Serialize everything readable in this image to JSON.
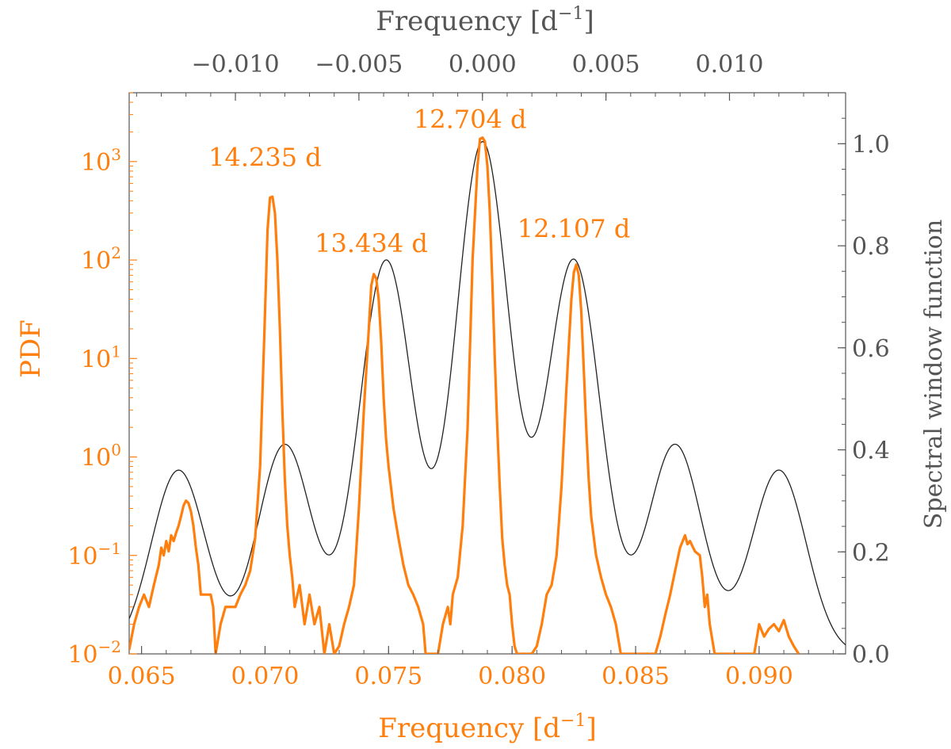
{
  "colors": {
    "pdf": "#ff7f0e",
    "window": "#555555",
    "window_line": "#222222"
  },
  "chart_data": {
    "type": "line",
    "bottom_axis": {
      "label_text": "Frequency [d",
      "label_sup": "−1",
      "label_close": "]",
      "range": [
        0.0645,
        0.0935
      ],
      "ticks": [
        0.065,
        0.07,
        0.075,
        0.08,
        0.085,
        0.09
      ],
      "tick_labels": [
        "0.065",
        "0.070",
        "0.075",
        "0.080",
        "0.085",
        "0.090"
      ],
      "minor_step": 0.001
    },
    "top_axis": {
      "label_text": "Frequency [d",
      "label_sup": "−1",
      "label_close": "]",
      "range": [
        -0.0143,
        0.0147
      ],
      "ticks": [
        -0.01,
        -0.005,
        0.0,
        0.005,
        0.01
      ],
      "tick_labels": [
        "−0.010",
        "−0.005",
        "0.000",
        "0.005",
        "0.010"
      ],
      "minor_step": 0.001
    },
    "left_axis": {
      "label": "PDF",
      "scale": "log",
      "range": [
        0.01,
        5000
      ],
      "tick_exponents": [
        -2,
        -1,
        0,
        1,
        2,
        3
      ],
      "tick_base": "10"
    },
    "right_axis": {
      "label": "Spectral window function",
      "range": [
        0.0,
        1.1
      ],
      "ticks": [
        0.0,
        0.2,
        0.4,
        0.6,
        0.8,
        1.0
      ],
      "tick_labels": [
        "0.0",
        "0.2",
        "0.4",
        "0.6",
        "0.8",
        "1.0"
      ],
      "minor_step": 0.05
    },
    "annotations": [
      {
        "text": "14.235 d",
        "x": 0.07,
        "y": 900
      },
      {
        "text": "13.434 d",
        "x": 0.0743,
        "y": 120
      },
      {
        "text": "12.704 d",
        "x": 0.0783,
        "y": 2200
      },
      {
        "text": "12.107 d",
        "x": 0.0825,
        "y": 170
      }
    ],
    "series": [
      {
        "axis": "left",
        "points": [
          [
            0.0645,
            0.011
          ],
          [
            0.0647,
            0.02
          ],
          [
            0.0649,
            0.03
          ],
          [
            0.0651,
            0.04
          ],
          [
            0.0653,
            0.03
          ],
          [
            0.0655,
            0.05
          ],
          [
            0.0657,
            0.08
          ],
          [
            0.0658,
            0.12
          ],
          [
            0.0659,
            0.1
          ],
          [
            0.066,
            0.14
          ],
          [
            0.0661,
            0.11
          ],
          [
            0.0662,
            0.16
          ],
          [
            0.0663,
            0.14
          ],
          [
            0.0664,
            0.17
          ],
          [
            0.0665,
            0.2
          ],
          [
            0.0666,
            0.25
          ],
          [
            0.0667,
            0.32
          ],
          [
            0.0668,
            0.36
          ],
          [
            0.0669,
            0.34
          ],
          [
            0.067,
            0.28
          ],
          [
            0.0671,
            0.2
          ],
          [
            0.0672,
            0.12
          ],
          [
            0.0673,
            0.08
          ],
          [
            0.0674,
            0.04
          ],
          [
            0.0676,
            0.04
          ],
          [
            0.0678,
            0.04
          ],
          [
            0.0679,
            0.03
          ],
          [
            0.068,
            0.01
          ],
          [
            0.0682,
            0.02
          ],
          [
            0.0684,
            0.03
          ],
          [
            0.0686,
            0.03
          ],
          [
            0.0688,
            0.03
          ],
          [
            0.069,
            0.04
          ],
          [
            0.0692,
            0.05
          ],
          [
            0.0694,
            0.07
          ],
          [
            0.0696,
            0.15
          ],
          [
            0.0698,
            0.8
          ],
          [
            0.07,
            30
          ],
          [
            0.0701,
            200
          ],
          [
            0.0702,
            430
          ],
          [
            0.0703,
            440
          ],
          [
            0.0704,
            300
          ],
          [
            0.0705,
            100
          ],
          [
            0.0706,
            20
          ],
          [
            0.0707,
            3
          ],
          [
            0.0708,
            0.6
          ],
          [
            0.0709,
            0.2
          ],
          [
            0.071,
            0.1
          ],
          [
            0.0711,
            0.06
          ],
          [
            0.0712,
            0.03
          ],
          [
            0.0714,
            0.05
          ],
          [
            0.0716,
            0.02
          ],
          [
            0.0718,
            0.04
          ],
          [
            0.072,
            0.02
          ],
          [
            0.0722,
            0.03
          ],
          [
            0.0724,
            0.01
          ],
          [
            0.0726,
            0.02
          ],
          [
            0.0728,
            0.01
          ],
          [
            0.073,
            0.012
          ],
          [
            0.0732,
            0.02
          ],
          [
            0.0734,
            0.03
          ],
          [
            0.0736,
            0.05
          ],
          [
            0.0738,
            0.3
          ],
          [
            0.074,
            3
          ],
          [
            0.0742,
            20
          ],
          [
            0.0743,
            55
          ],
          [
            0.0744,
            72
          ],
          [
            0.0745,
            65
          ],
          [
            0.0746,
            40
          ],
          [
            0.0747,
            15
          ],
          [
            0.0748,
            4
          ],
          [
            0.0749,
            1.5
          ],
          [
            0.075,
            0.8
          ],
          [
            0.0752,
            0.3
          ],
          [
            0.0754,
            0.15
          ],
          [
            0.0756,
            0.08
          ],
          [
            0.0758,
            0.05
          ],
          [
            0.076,
            0.04
          ],
          [
            0.0762,
            0.03
          ],
          [
            0.0764,
            0.02
          ],
          [
            0.0765,
            0.01
          ],
          [
            0.077,
            0.01
          ],
          [
            0.0772,
            0.02
          ],
          [
            0.0774,
            0.03
          ],
          [
            0.0775,
            0.02
          ],
          [
            0.0776,
            0.04
          ],
          [
            0.0778,
            0.06
          ],
          [
            0.078,
            0.2
          ],
          [
            0.0782,
            2
          ],
          [
            0.0784,
            100
          ],
          [
            0.0786,
            900
          ],
          [
            0.0787,
            1700
          ],
          [
            0.0788,
            1750
          ],
          [
            0.0789,
            1600
          ],
          [
            0.079,
            900
          ],
          [
            0.0791,
            300
          ],
          [
            0.0792,
            60
          ],
          [
            0.0793,
            10
          ],
          [
            0.0794,
            2
          ],
          [
            0.0795,
            0.5
          ],
          [
            0.0796,
            0.15
          ],
          [
            0.0797,
            0.08
          ],
          [
            0.0798,
            0.05
          ],
          [
            0.0799,
            0.04
          ],
          [
            0.08,
            0.02
          ],
          [
            0.0801,
            0.012
          ],
          [
            0.0802,
            0.01
          ],
          [
            0.0808,
            0.01
          ],
          [
            0.081,
            0.012
          ],
          [
            0.0812,
            0.02
          ],
          [
            0.0814,
            0.04
          ],
          [
            0.0816,
            0.05
          ],
          [
            0.0818,
            0.1
          ],
          [
            0.082,
            0.5
          ],
          [
            0.0822,
            5
          ],
          [
            0.0824,
            40
          ],
          [
            0.0825,
            75
          ],
          [
            0.0826,
            90
          ],
          [
            0.0827,
            70
          ],
          [
            0.0828,
            30
          ],
          [
            0.0829,
            8
          ],
          [
            0.083,
            2
          ],
          [
            0.0831,
            0.6
          ],
          [
            0.0832,
            0.25
          ],
          [
            0.0834,
            0.1
          ],
          [
            0.0836,
            0.06
          ],
          [
            0.0838,
            0.04
          ],
          [
            0.084,
            0.03
          ],
          [
            0.0842,
            0.02
          ],
          [
            0.0844,
            0.01
          ],
          [
            0.0858,
            0.01
          ],
          [
            0.086,
            0.015
          ],
          [
            0.0862,
            0.025
          ],
          [
            0.0864,
            0.04
          ],
          [
            0.0866,
            0.07
          ],
          [
            0.0868,
            0.12
          ],
          [
            0.087,
            0.16
          ],
          [
            0.0871,
            0.13
          ],
          [
            0.0872,
            0.14
          ],
          [
            0.0874,
            0.11
          ],
          [
            0.0876,
            0.1
          ],
          [
            0.0877,
            0.06
          ],
          [
            0.0878,
            0.03
          ],
          [
            0.0879,
            0.04
          ],
          [
            0.088,
            0.02
          ],
          [
            0.0882,
            0.01
          ],
          [
            0.0898,
            0.01
          ],
          [
            0.09,
            0.02
          ],
          [
            0.0902,
            0.015
          ],
          [
            0.0904,
            0.018
          ],
          [
            0.0906,
            0.02
          ],
          [
            0.0908,
            0.017
          ],
          [
            0.091,
            0.022
          ],
          [
            0.0912,
            0.015
          ],
          [
            0.0914,
            0.012
          ],
          [
            0.0916,
            0.01
          ]
        ]
      },
      {
        "axis": "right",
        "function": "spectral_window",
        "peak_positions": [
          0.0665,
          0.0708,
          0.0749,
          0.0788,
          0.0825,
          0.0866,
          0.0908
        ],
        "peak_heights": [
          0.36,
          0.41,
          0.77,
          1.0,
          0.77,
          0.41,
          0.36
        ],
        "peak_width": 0.0011
      }
    ]
  }
}
